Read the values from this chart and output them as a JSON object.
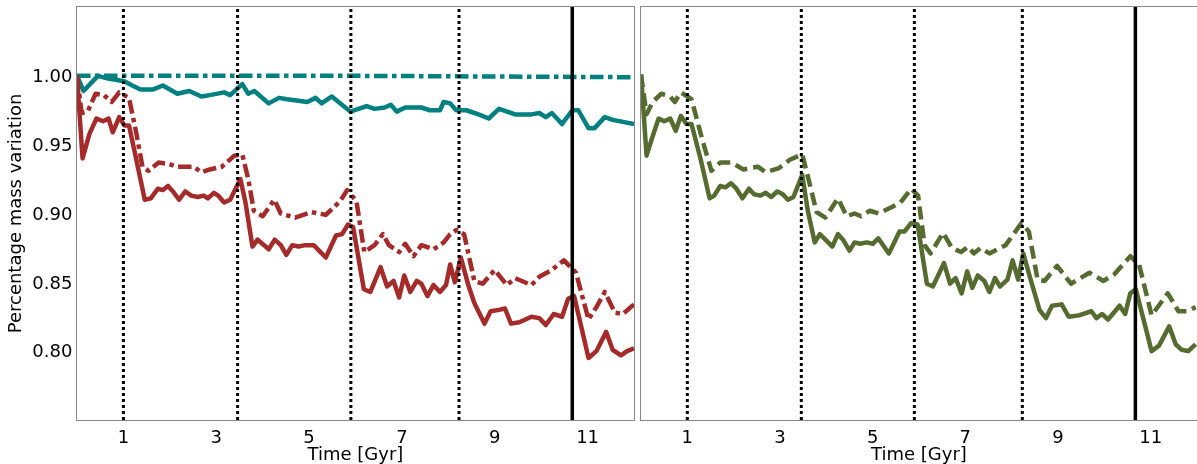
{
  "chart_data": [
    {
      "type": "line",
      "xlabel": "Time [Gyr]",
      "ylabel": "Percentage mass variation",
      "xlim": [
        0,
        12
      ],
      "xticks": [
        1,
        3,
        5,
        7,
        9,
        11
      ],
      "ylim": [
        0.75,
        1.05
      ],
      "yticks": [
        {
          "value": 0.8,
          "label": "0.80"
        },
        {
          "value": 0.85,
          "label": "0.85"
        },
        {
          "value": 0.9,
          "label": "0.90"
        },
        {
          "value": 0.95,
          "label": "0.95"
        },
        {
          "value": 1.0,
          "label": "1.00"
        }
      ],
      "grid": false,
      "series": [
        {
          "color": "#008080",
          "line_style": "dashdot",
          "x": [
            0,
            3,
            6,
            9,
            12
          ],
          "values": [
            1.0,
            1.0,
            1.0,
            0.9995,
            0.999
          ]
        },
        {
          "color": "#008080",
          "line_style": "solid",
          "x": [
            0,
            0.14,
            0.45,
            0.67,
            1.02,
            1.19,
            1.37,
            1.63,
            1.85,
            2.16,
            2.42,
            2.68,
            2.86,
            3.17,
            3.3,
            3.56,
            3.69,
            3.82,
            4.13,
            4.35,
            4.53,
            4.96,
            5.14,
            5.27,
            5.49,
            5.89,
            6.24,
            6.41,
            6.63,
            6.76,
            6.89,
            7.07,
            7.42,
            7.6,
            7.82,
            7.9,
            8.04,
            8.17,
            8.39,
            8.65,
            8.87,
            9.09,
            9.44,
            9.79,
            9.96,
            10.1,
            10.23,
            10.45,
            10.67,
            10.8,
            11.02,
            11.15,
            11.37,
            11.54,
            12.0
          ],
          "values": [
            1.0,
            0.989,
            1.0,
            0.998,
            0.996,
            0.993,
            0.99,
            0.99,
            0.993,
            0.987,
            0.989,
            0.985,
            0.986,
            0.988,
            0.986,
            0.994,
            0.987,
            0.989,
            0.98,
            0.984,
            0.983,
            0.981,
            0.984,
            0.98,
            0.985,
            0.974,
            0.978,
            0.976,
            0.977,
            0.979,
            0.974,
            0.977,
            0.977,
            0.975,
            0.975,
            0.981,
            0.98,
            0.975,
            0.975,
            0.972,
            0.969,
            0.976,
            0.972,
            0.972,
            0.973,
            0.97,
            0.973,
            0.965,
            0.975,
            0.975,
            0.962,
            0.962,
            0.97,
            0.968,
            0.965
          ]
        },
        {
          "color": "#a52a2a",
          "line_style": "solid",
          "x": [
            0,
            0.12,
            0.27,
            0.42,
            0.56,
            0.68,
            0.77,
            0.91,
            1.02,
            1.12,
            1.26,
            1.46,
            1.59,
            1.74,
            1.85,
            1.96,
            2.07,
            2.2,
            2.33,
            2.46,
            2.6,
            2.73,
            2.82,
            2.95,
            3.04,
            3.17,
            3.3,
            3.52,
            3.63,
            3.78,
            3.89,
            4.03,
            4.13,
            4.26,
            4.39,
            4.51,
            4.64,
            4.77,
            4.92,
            5.1,
            5.36,
            5.58,
            5.71,
            5.84,
            5.95,
            6.18,
            6.32,
            6.54,
            6.68,
            6.82,
            6.94,
            7.05,
            7.18,
            7.32,
            7.42,
            7.55,
            7.68,
            7.82,
            7.95,
            8.04,
            8.14,
            8.27,
            8.43,
            8.56,
            8.78,
            8.91,
            9.09,
            9.22,
            9.35,
            9.53,
            9.79,
            9.96,
            10.1,
            10.27,
            10.45,
            10.58,
            10.71,
            11.02,
            11.19,
            11.4,
            11.54,
            11.72,
            11.85,
            12.0
          ],
          "values": [
            1.0,
            0.94,
            0.958,
            0.969,
            0.967,
            0.969,
            0.959,
            0.97,
            0.964,
            0.964,
            0.942,
            0.91,
            0.911,
            0.918,
            0.917,
            0.92,
            0.916,
            0.91,
            0.916,
            0.913,
            0.912,
            0.913,
            0.911,
            0.915,
            0.913,
            0.908,
            0.91,
            0.925,
            0.908,
            0.876,
            0.881,
            0.877,
            0.874,
            0.881,
            0.877,
            0.87,
            0.877,
            0.876,
            0.877,
            0.877,
            0.868,
            0.884,
            0.885,
            0.892,
            0.89,
            0.845,
            0.843,
            0.861,
            0.847,
            0.851,
            0.839,
            0.855,
            0.843,
            0.851,
            0.849,
            0.84,
            0.848,
            0.843,
            0.848,
            0.863,
            0.85,
            0.868,
            0.848,
            0.835,
            0.82,
            0.829,
            0.83,
            0.831,
            0.82,
            0.821,
            0.825,
            0.824,
            0.819,
            0.827,
            0.825,
            0.838,
            0.84,
            0.795,
            0.8,
            0.814,
            0.801,
            0.797,
            0.8,
            0.802
          ]
        },
        {
          "color": "#a52a2a",
          "line_style": "dashdot",
          "x": [
            0,
            0.1,
            0.23,
            0.4,
            0.58,
            0.75,
            0.91,
            1.12,
            1.28,
            1.41,
            1.54,
            1.76,
            1.98,
            2.16,
            2.51,
            2.68,
            2.86,
            3.12,
            3.39,
            3.56,
            3.69,
            3.81,
            4.0,
            4.25,
            4.39,
            4.7,
            5.05,
            5.36,
            5.67,
            5.82,
            6.02,
            6.19,
            6.41,
            6.59,
            6.72,
            6.94,
            7.07,
            7.25,
            7.42,
            7.68,
            7.9,
            8.04,
            8.17,
            8.34,
            8.56,
            8.74,
            9.0,
            9.26,
            9.44,
            9.79,
            9.96,
            10.23,
            10.49,
            10.75,
            11.02,
            11.19,
            11.37,
            11.59,
            11.76,
            12.0
          ],
          "values": [
            1.0,
            0.973,
            0.974,
            0.987,
            0.986,
            0.981,
            0.988,
            0.984,
            0.958,
            0.934,
            0.931,
            0.937,
            0.936,
            0.934,
            0.934,
            0.93,
            0.932,
            0.934,
            0.942,
            0.943,
            0.925,
            0.902,
            0.898,
            0.91,
            0.9,
            0.897,
            0.901,
            0.899,
            0.909,
            0.917,
            0.909,
            0.872,
            0.877,
            0.885,
            0.877,
            0.872,
            0.878,
            0.869,
            0.877,
            0.874,
            0.879,
            0.885,
            0.888,
            0.885,
            0.851,
            0.849,
            0.859,
            0.848,
            0.853,
            0.848,
            0.854,
            0.859,
            0.866,
            0.857,
            0.823,
            0.832,
            0.843,
            0.828,
            0.827,
            0.834
          ]
        }
      ],
      "ref_lines": [
        {
          "axis": "x",
          "value": 1.0,
          "color": "#000000",
          "line_style": "dotted"
        },
        {
          "axis": "x",
          "value": 3.46,
          "color": "#000000",
          "line_style": "dotted"
        },
        {
          "axis": "x",
          "value": 5.9,
          "color": "#000000",
          "line_style": "dotted"
        },
        {
          "axis": "x",
          "value": 8.23,
          "color": "#000000",
          "line_style": "dotted"
        },
        {
          "axis": "x",
          "value": 10.67,
          "color": "#000000",
          "line_style": "solid"
        }
      ]
    },
    {
      "type": "line",
      "xlabel": "Time [Gyr]",
      "xlim": [
        0,
        12
      ],
      "xticks": [
        1,
        3,
        5,
        7,
        9,
        11
      ],
      "ylim": [
        0.75,
        1.05
      ],
      "tick_labels": "x",
      "grid": false,
      "series": [
        {
          "color": "#556b2f",
          "line_style": "solid",
          "x": [
            0,
            0.12,
            0.25,
            0.38,
            0.5,
            0.63,
            0.75,
            0.86,
            0.98,
            1.09,
            1.29,
            1.48,
            1.58,
            1.71,
            1.82,
            1.94,
            2.06,
            2.19,
            2.33,
            2.44,
            2.58,
            2.69,
            2.81,
            2.94,
            3.06,
            3.17,
            3.29,
            3.48,
            3.6,
            3.75,
            3.86,
            3.98,
            4.13,
            4.25,
            4.36,
            4.5,
            4.61,
            4.73,
            4.87,
            5.0,
            5.12,
            5.35,
            5.58,
            5.69,
            5.83,
            5.97,
            6.17,
            6.3,
            6.54,
            6.67,
            6.79,
            6.92,
            7.04,
            7.15,
            7.27,
            7.41,
            7.52,
            7.64,
            7.75,
            7.91,
            8.02,
            8.14,
            8.25,
            8.41,
            8.6,
            8.74,
            8.87,
            9.08,
            9.23,
            9.45,
            9.72,
            9.83,
            9.95,
            10.08,
            10.33,
            10.45,
            10.56,
            10.68,
            11.02,
            11.18,
            11.4,
            11.54,
            11.67,
            11.81,
            11.97
          ],
          "values": [
            1.001,
            0.942,
            0.956,
            0.969,
            0.967,
            0.969,
            0.96,
            0.971,
            0.965,
            0.965,
            0.939,
            0.911,
            0.913,
            0.92,
            0.919,
            0.922,
            0.918,
            0.911,
            0.918,
            0.914,
            0.913,
            0.915,
            0.912,
            0.916,
            0.914,
            0.91,
            0.912,
            0.928,
            0.902,
            0.879,
            0.885,
            0.881,
            0.876,
            0.885,
            0.881,
            0.873,
            0.879,
            0.878,
            0.879,
            0.878,
            0.882,
            0.871,
            0.887,
            0.887,
            0.893,
            0.892,
            0.849,
            0.847,
            0.864,
            0.849,
            0.853,
            0.842,
            0.858,
            0.846,
            0.855,
            0.851,
            0.843,
            0.853,
            0.847,
            0.852,
            0.866,
            0.852,
            0.871,
            0.852,
            0.83,
            0.824,
            0.833,
            0.834,
            0.825,
            0.826,
            0.829,
            0.824,
            0.827,
            0.823,
            0.833,
            0.827,
            0.842,
            0.845,
            0.8,
            0.804,
            0.818,
            0.805,
            0.801,
            0.8,
            0.805
          ]
        },
        {
          "color": "#556b2f",
          "line_style": "dashed",
          "x": [
            0,
            0.12,
            0.25,
            0.44,
            0.63,
            0.73,
            0.86,
            1.09,
            1.32,
            1.52,
            1.71,
            1.96,
            2.21,
            2.52,
            2.69,
            2.98,
            3.21,
            3.48,
            3.63,
            3.79,
            3.98,
            4.25,
            4.44,
            4.61,
            4.75,
            4.94,
            5.13,
            5.37,
            5.6,
            5.83,
            5.98,
            6.12,
            6.25,
            6.52,
            6.71,
            6.91,
            7.06,
            7.18,
            7.33,
            7.52,
            7.87,
            8.21,
            8.37,
            8.56,
            8.71,
            8.98,
            9.28,
            9.68,
            9.98,
            10.22,
            10.56,
            10.75,
            11.02,
            11.37,
            11.6,
            11.79,
            11.97
          ],
          "values": [
            1.001,
            0.972,
            0.981,
            0.987,
            0.985,
            0.981,
            0.988,
            0.983,
            0.954,
            0.931,
            0.937,
            0.937,
            0.932,
            0.934,
            0.93,
            0.933,
            0.939,
            0.943,
            0.923,
            0.901,
            0.897,
            0.911,
            0.898,
            0.9,
            0.898,
            0.902,
            0.9,
            0.904,
            0.908,
            0.918,
            0.913,
            0.877,
            0.871,
            0.886,
            0.875,
            0.872,
            0.876,
            0.871,
            0.875,
            0.871,
            0.877,
            0.893,
            0.887,
            0.852,
            0.851,
            0.862,
            0.849,
            0.857,
            0.851,
            0.856,
            0.869,
            0.863,
            0.826,
            0.842,
            0.829,
            0.829,
            0.832
          ]
        }
      ],
      "ref_lines": [
        {
          "axis": "x",
          "value": 1.0,
          "color": "#000000",
          "line_style": "dotted"
        },
        {
          "axis": "x",
          "value": 3.46,
          "color": "#000000",
          "line_style": "dotted"
        },
        {
          "axis": "x",
          "value": 5.9,
          "color": "#000000",
          "line_style": "dotted"
        },
        {
          "axis": "x",
          "value": 8.23,
          "color": "#000000",
          "line_style": "dotted"
        },
        {
          "axis": "x",
          "value": 10.67,
          "color": "#000000",
          "line_style": "solid"
        }
      ]
    }
  ]
}
